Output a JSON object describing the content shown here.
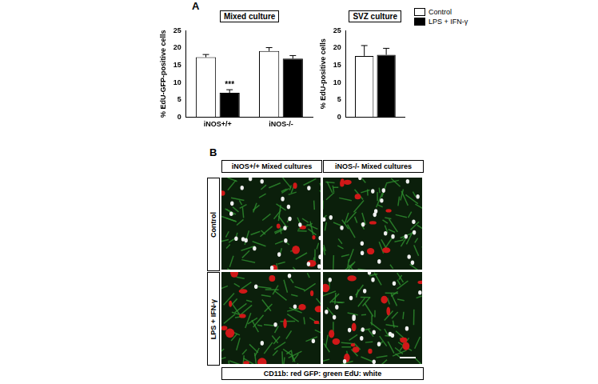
{
  "chart_data": [
    {
      "type": "bar",
      "panel": "A",
      "title": "Mixed culture",
      "y_label": "% EdU-GFP-positive cells",
      "categories": [
        "iNOS+/+",
        "iNOS-/-"
      ],
      "series": [
        {
          "name": "Control",
          "color": "#ffffff",
          "values": [
            17.3,
            19.1
          ],
          "errors": [
            0.8,
            1.0
          ]
        },
        {
          "name": "LPS + IFN-γ",
          "color": "#000000",
          "values": [
            7.0,
            16.9
          ],
          "errors": [
            0.9,
            0.9
          ]
        }
      ],
      "annotations": [
        {
          "text": "***",
          "category": 0,
          "series": 1
        }
      ],
      "ylim": [
        0,
        25
      ],
      "yticks": [
        0,
        5,
        10,
        15,
        20,
        25
      ],
      "grid": false
    },
    {
      "type": "bar",
      "title": "SVZ culture",
      "y_label": "% EdU-positive cells",
      "categories": [
        null
      ],
      "series": [
        {
          "name": "Control",
          "color": "#ffffff",
          "values": [
            17.7
          ],
          "errors": [
            3.0
          ]
        },
        {
          "name": "LPS + IFN-γ",
          "color": "#000000",
          "values": [
            18.0
          ],
          "errors": [
            1.9
          ]
        }
      ],
      "ylim": [
        0,
        25
      ],
      "yticks": [
        0,
        5,
        10,
        15,
        20,
        25
      ],
      "grid": false,
      "legend": "top-right"
    }
  ],
  "panel_b": {
    "label": "B",
    "columns": [
      "iNOS+/+ Mixed cultures",
      "iNOS-/- Mixed cultures"
    ],
    "rows": [
      "Control",
      "LPS + IFN-γ"
    ],
    "key": [
      "CD11b: red",
      "GFP: green",
      "EdU: white"
    ]
  }
}
